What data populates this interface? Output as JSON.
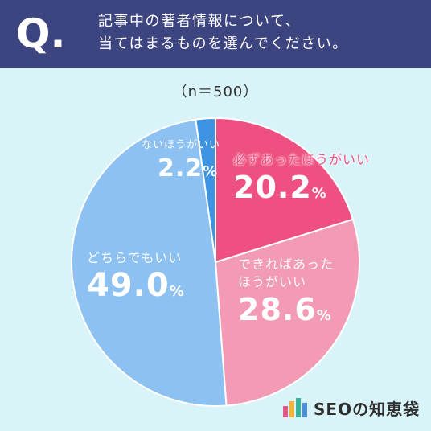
{
  "header": {
    "q_mark": "Q.",
    "question_line1": "記事中の著者情報について、",
    "question_line2": "当てはまるものを選んでください。"
  },
  "sample_size": "（n＝500）",
  "logo": {
    "text": "SEOの知恵袋"
  },
  "colors": {
    "header_bg": "#3d4581",
    "background": "#d9f4f9",
    "slice_must": "#ee5181",
    "slice_better": "#f39ab4",
    "slice_either": "#8cc1f2",
    "slice_not": "#3d94e3"
  },
  "chart_data": {
    "type": "pie",
    "unit": "%",
    "slices": [
      {
        "label": "必ずあったほうがいい",
        "value": 20.2,
        "value_text": "20.2",
        "color": "#ee5181"
      },
      {
        "label": "できればあったほうがいい",
        "value": 28.6,
        "value_text": "28.6",
        "color": "#f39ab4"
      },
      {
        "label": "どちらでもいい",
        "value": 49.0,
        "value_text": "49.0",
        "color": "#8cc1f2"
      },
      {
        "label": "ないほうがいい",
        "value": 2.2,
        "value_text": "2.2",
        "color": "#3d94e3"
      }
    ]
  }
}
